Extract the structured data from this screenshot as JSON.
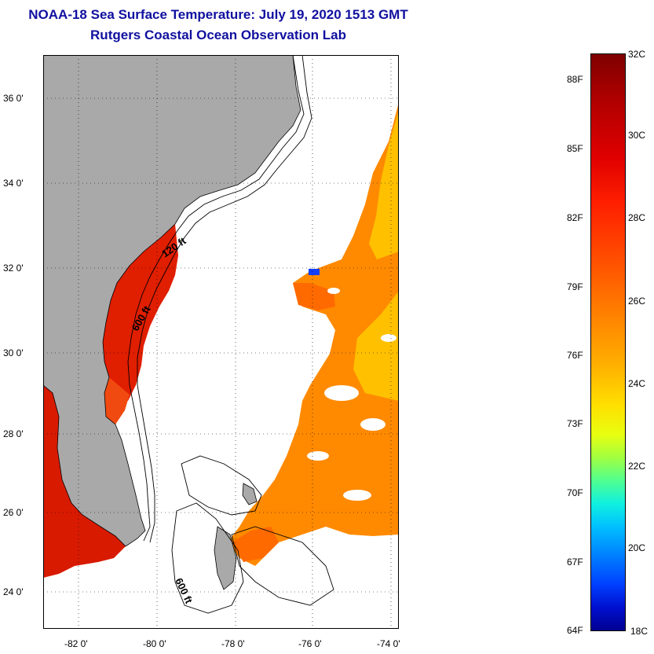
{
  "title": {
    "line1": "NOAA-18 Sea Surface Temperature:  July 19, 2020 1513 GMT",
    "line2": "Rutgers Coastal Ocean Observation Lab"
  },
  "map": {
    "latitude_labels": [
      "36 0'",
      "34 0'",
      "32 0'",
      "30 0'",
      "28 0'",
      "26 0'",
      "24 0'"
    ],
    "longitude_labels": [
      "-82 0'",
      "-80 0'",
      "-78 0'",
      "-76 0'",
      "-74 0'"
    ],
    "contour_labels": [
      "120 ft",
      "600 ft",
      "600 ft"
    ],
    "colors": {
      "land": "#a9a9a9",
      "warm_water": "#ff2a00",
      "mid_water": "#ff8c00",
      "cool_water": "#ffd000",
      "cloud": "#ffffff"
    }
  },
  "colorbar": {
    "fahrenheit_labels": [
      "88F",
      "85F",
      "82F",
      "79F",
      "76F",
      "73F",
      "70F",
      "67F",
      "64F"
    ],
    "celsius_labels": [
      "32C",
      "30C",
      "28C",
      "26C",
      "24C",
      "22C",
      "20C",
      "18C"
    ],
    "range_celsius": [
      18,
      32
    ]
  }
}
